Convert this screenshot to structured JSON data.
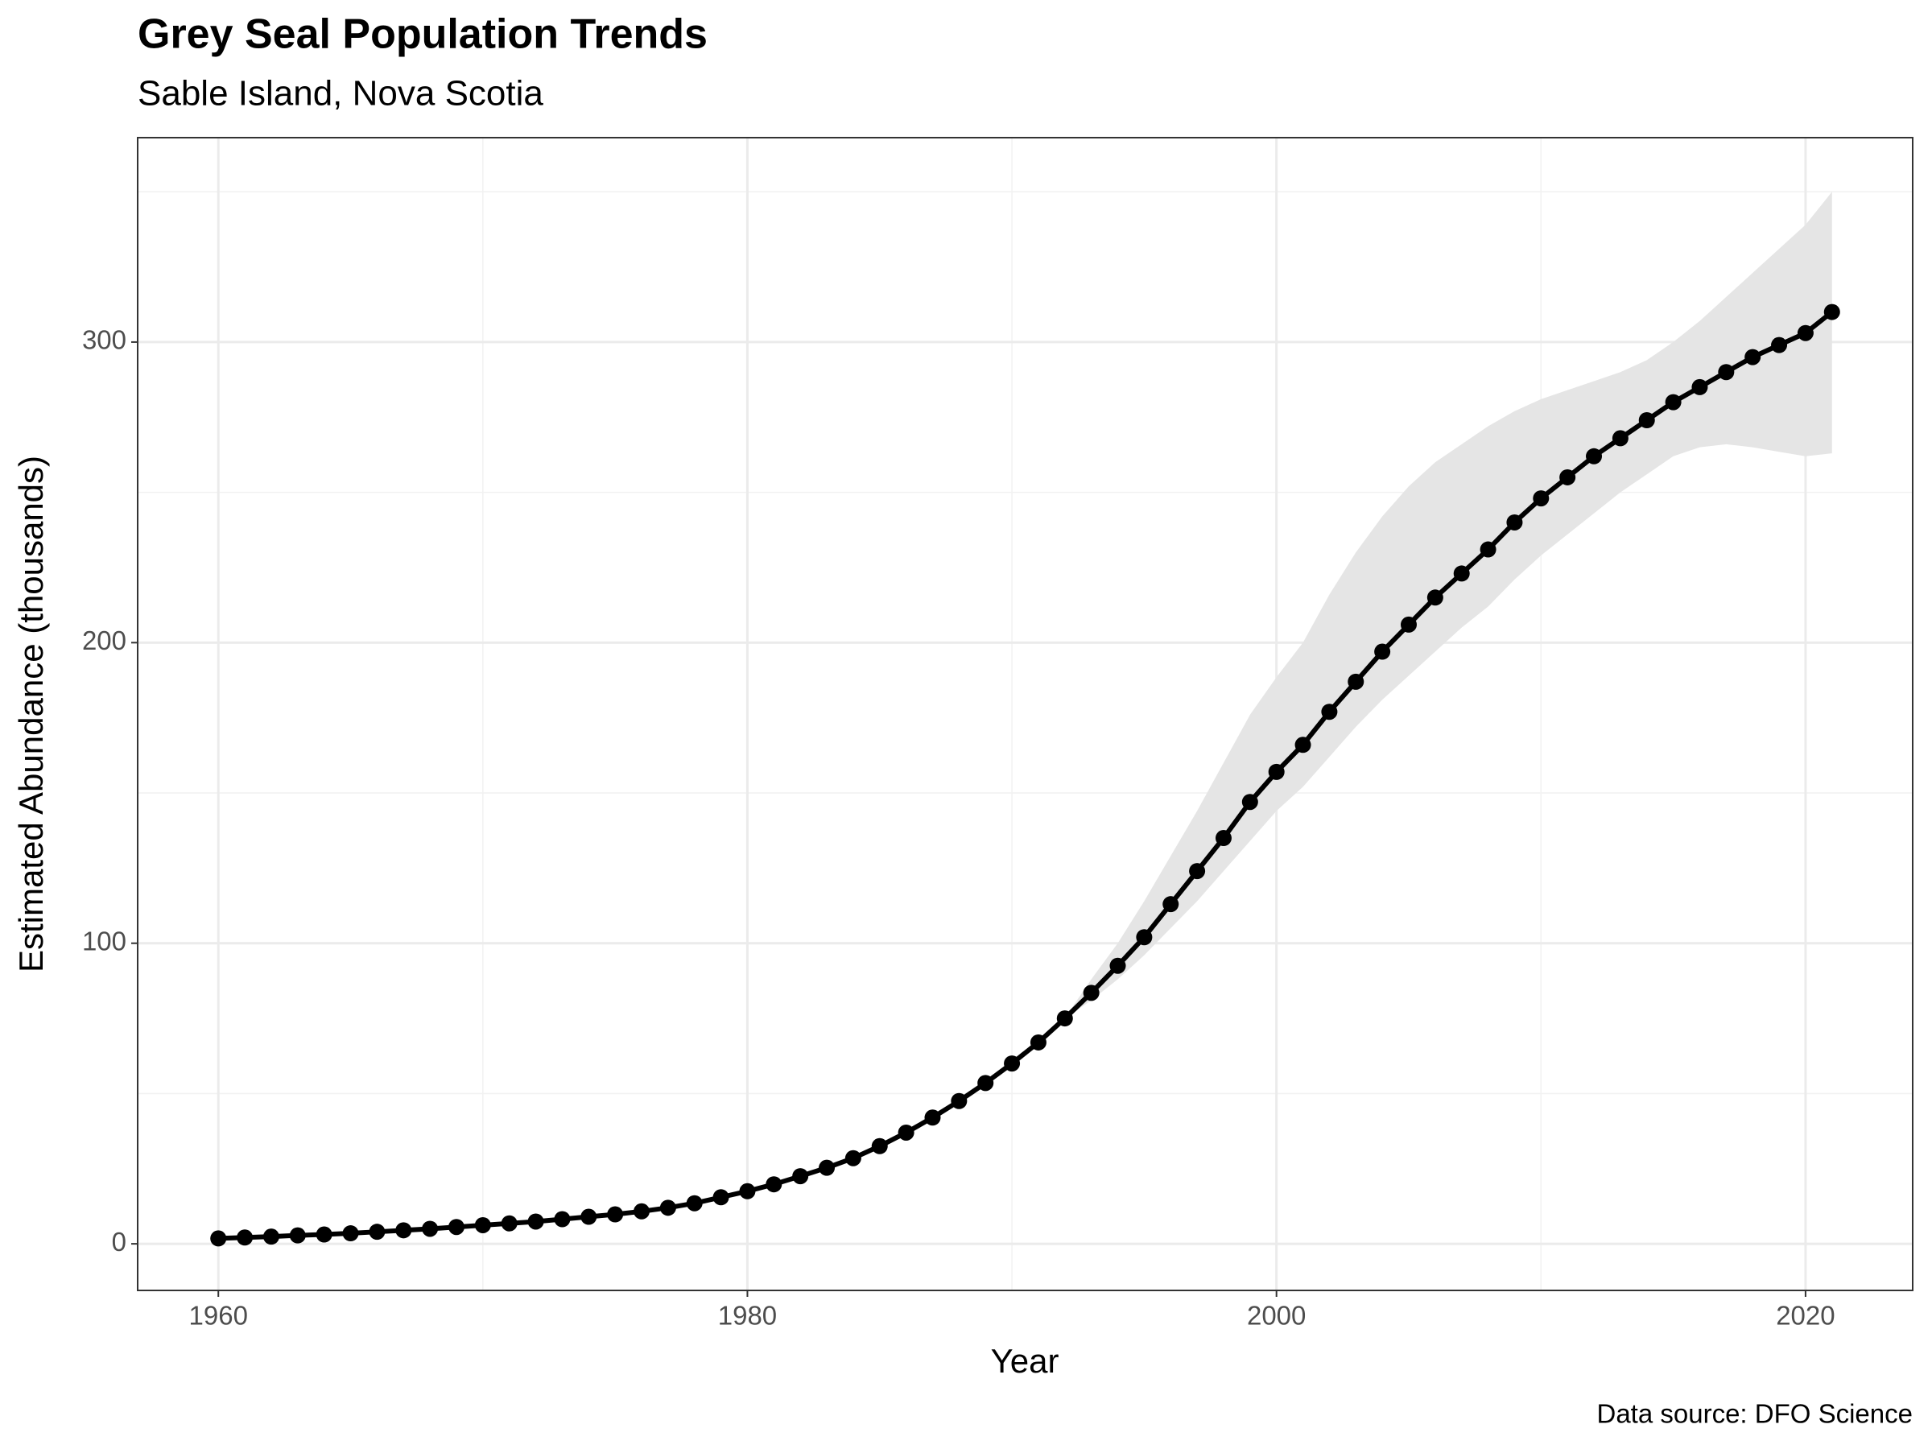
{
  "chart_data": {
    "type": "line",
    "title": "Grey Seal Population Trends",
    "subtitle": "Sable Island, Nova Scotia",
    "x_label": "Year",
    "y_label": "Estimated Abundance (thousands)",
    "caption": "Data source: DFO Science",
    "x": [
      1960,
      1961,
      1962,
      1963,
      1964,
      1965,
      1966,
      1967,
      1968,
      1969,
      1970,
      1971,
      1972,
      1973,
      1974,
      1975,
      1976,
      1977,
      1978,
      1979,
      1980,
      1981,
      1982,
      1983,
      1984,
      1985,
      1986,
      1987,
      1988,
      1989,
      1990,
      1991,
      1992,
      1993,
      1994,
      1995,
      1996,
      1997,
      1998,
      1999,
      2000,
      2001,
      2002,
      2003,
      2004,
      2005,
      2006,
      2007,
      2008,
      2009,
      2010,
      2011,
      2012,
      2013,
      2014,
      2015,
      2016,
      2017,
      2018,
      2019,
      2020,
      2021
    ],
    "values": [
      1.8,
      2.1,
      2.4,
      2.8,
      3.1,
      3.5,
      4.0,
      4.5,
      5.0,
      5.6,
      6.2,
      6.8,
      7.4,
      8.2,
      9.0,
      9.8,
      10.8,
      12.0,
      13.5,
      15.5,
      17.5,
      19.8,
      22.5,
      25.3,
      28.5,
      32.5,
      37,
      42,
      47.5,
      53.5,
      60,
      67,
      75,
      83.5,
      92.5,
      102,
      113,
      124,
      135,
      147,
      157,
      166,
      177,
      187,
      197,
      206,
      215,
      223,
      231,
      240,
      248,
      255,
      262,
      268,
      274,
      280,
      285,
      290,
      295,
      299,
      303,
      310
    ],
    "lower": [
      1.7,
      2.0,
      2.3,
      2.7,
      3.0,
      3.4,
      3.9,
      4.4,
      4.9,
      5.5,
      6.1,
      6.7,
      7.3,
      8.1,
      8.9,
      9.7,
      10.7,
      11.9,
      13.4,
      15.4,
      17.4,
      19.7,
      22.4,
      25.2,
      28.4,
      32.4,
      36.9,
      41.9,
      47.4,
      53.4,
      59.9,
      66.9,
      74.9,
      81,
      88,
      96,
      105,
      114,
      124,
      134,
      144,
      152,
      162,
      172,
      181,
      189,
      197,
      205,
      212,
      221,
      229,
      236,
      243,
      250,
      256,
      262,
      265,
      266,
      265,
      263.5,
      262,
      263
    ],
    "upper": [
      1.9,
      2.2,
      2.5,
      2.9,
      3.2,
      3.6,
      4.1,
      4.6,
      5.1,
      5.7,
      6.3,
      6.9,
      7.5,
      8.3,
      9.1,
      9.9,
      10.9,
      12.1,
      13.6,
      15.6,
      17.6,
      19.9,
      22.6,
      25.4,
      28.6,
      32.6,
      37.1,
      42.1,
      47.6,
      53.6,
      60.1,
      67.1,
      75.1,
      88,
      100,
      114,
      129,
      144,
      160,
      176,
      188.5,
      200,
      216,
      230,
      242,
      252,
      260,
      266,
      272,
      277,
      281,
      284,
      287,
      290,
      294,
      300,
      307,
      315,
      323,
      331,
      339,
      350
    ],
    "line_color": "#000000",
    "ribbon_color": "#e5e5e5",
    "xlim": [
      1956.95,
      2024.05
    ],
    "ylim": [
      -15.5,
      368
    ],
    "xticks": [
      1960,
      1980,
      2000,
      2020
    ],
    "yticks": [
      0,
      100,
      200,
      300
    ],
    "minor_xticks": [
      1970,
      1990,
      2010
    ],
    "minor_yticks": [
      50,
      150,
      250,
      350
    ],
    "grid": true
  }
}
